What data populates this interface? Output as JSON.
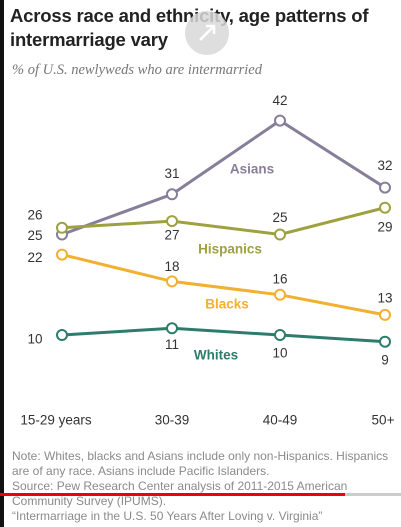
{
  "chart_data": {
    "type": "line",
    "title": "Across race and ethnicity, age patterns of intermarriage vary",
    "subtitle": "% of U.S. newlyweds who are intermarried",
    "categories": [
      "15-29 years",
      "30-39",
      "40-49",
      "50+"
    ],
    "series": [
      {
        "name": "Asians",
        "color": "#877e99",
        "values": [
          25,
          31,
          42,
          32
        ]
      },
      {
        "name": "Hispanics",
        "color": "#9ea13f",
        "values": [
          26,
          27,
          25,
          29
        ]
      },
      {
        "name": "Blacks",
        "color": "#f1b02f",
        "values": [
          22,
          18,
          16,
          13
        ]
      },
      {
        "name": "Whites",
        "color": "#2e7c6c",
        "values": [
          10,
          11,
          10,
          9
        ]
      }
    ],
    "note": "Note: Whites, blacks and Asians include only non-Hispanics. Hispanics are of any race. Asians include Pacific Islanders.",
    "source": "Source: Pew Research Center analysis of 2011-2015 American Community Survey (IPUMS).",
    "report": "“Intermarriage in the U.S. 50 Years After Loving v. Virginia”"
  }
}
